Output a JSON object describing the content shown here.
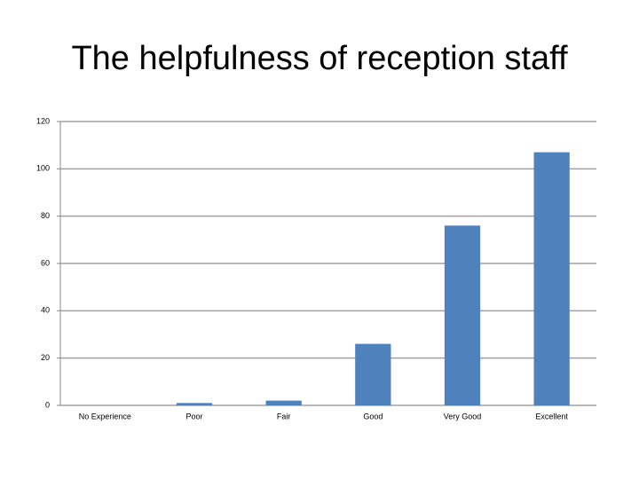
{
  "chart_data": {
    "type": "bar",
    "title": "The helpfulness of reception staff",
    "categories": [
      "No Experience",
      "Poor",
      "Fair",
      "Good",
      "Very Good",
      "Excellent"
    ],
    "values": [
      0,
      1,
      2,
      26,
      76,
      107
    ],
    "color": "#4f81bd",
    "ylim": [
      0,
      120
    ],
    "yticks": [
      0,
      20,
      40,
      60,
      80,
      100,
      120
    ],
    "grid": true
  }
}
